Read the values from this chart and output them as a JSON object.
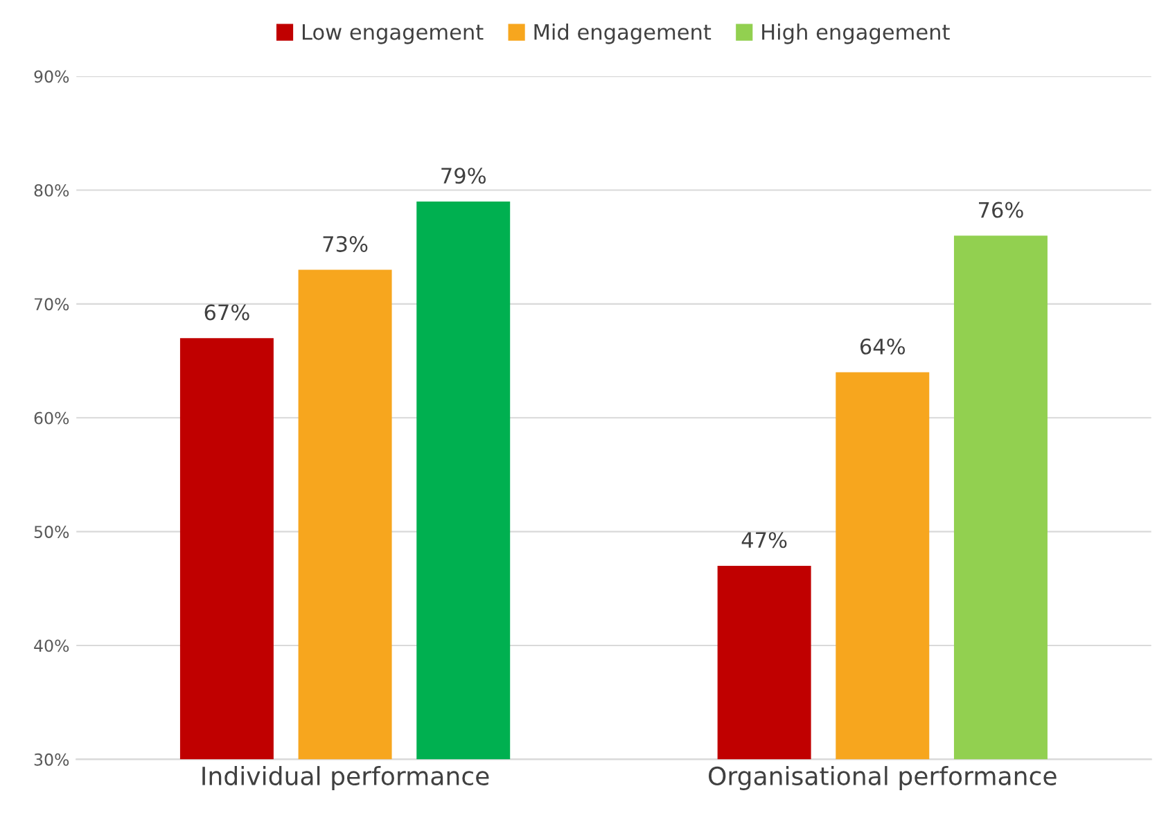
{
  "chart_data": {
    "type": "bar",
    "categories": [
      "Individual performance",
      "Organisational performance"
    ],
    "series": [
      {
        "name": "Low engagement",
        "color": "#c00000",
        "values": [
          67,
          47
        ],
        "value_labels": [
          "67%",
          "47%"
        ]
      },
      {
        "name": "Mid engagement",
        "color": "#f7a61e",
        "values": [
          73,
          64
        ],
        "value_labels": [
          "73%",
          "64%"
        ]
      },
      {
        "name": "High engagement",
        "color": "#92d050",
        "colors": [
          "#00b050",
          "#92d050"
        ],
        "values": [
          79,
          76
        ],
        "value_labels": [
          "79%",
          "76%"
        ]
      }
    ],
    "ylim": [
      30,
      90
    ],
    "yticks": [
      {
        "value": 30,
        "label": "30%"
      },
      {
        "value": 40,
        "label": "40%"
      },
      {
        "value": 50,
        "label": "50%"
      },
      {
        "value": 60,
        "label": "60%"
      },
      {
        "value": 70,
        "label": "70%"
      },
      {
        "value": 80,
        "label": "80%"
      },
      {
        "value": 90,
        "label": "90%"
      }
    ],
    "grid": "y",
    "legend": "top"
  }
}
